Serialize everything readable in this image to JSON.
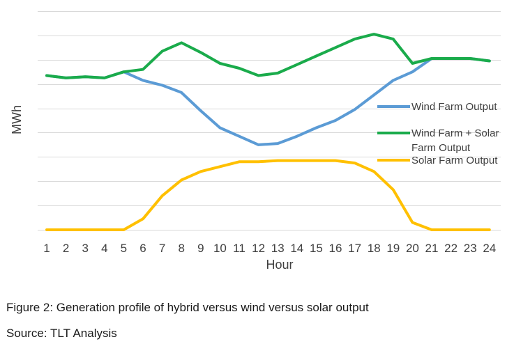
{
  "chart_data": {
    "type": "line",
    "xlabel": "Hour",
    "ylabel": "MWh",
    "x": [
      1,
      2,
      3,
      4,
      5,
      6,
      7,
      8,
      9,
      10,
      11,
      12,
      13,
      14,
      15,
      16,
      17,
      18,
      19,
      20,
      21,
      22,
      23,
      24
    ],
    "ylim": [
      0,
      9
    ],
    "grid": true,
    "legend_position": "right",
    "series": [
      {
        "name": "Wind Farm Output",
        "color": "#5b9bd5",
        "values": [
          6.35,
          6.25,
          6.3,
          6.25,
          6.5,
          6.15,
          5.95,
          5.65,
          4.9,
          4.2,
          3.85,
          3.5,
          3.55,
          3.85,
          4.2,
          4.5,
          4.95,
          5.55,
          6.15,
          6.5,
          7.05,
          7.05,
          7.05,
          6.95
        ]
      },
      {
        "name": "Wind Farm + Solar Farm Output",
        "name_line1": "Wind Farm + Solar",
        "name_line2": "Farm Output",
        "color": "#1aab4b",
        "values": [
          6.35,
          6.25,
          6.3,
          6.25,
          6.5,
          6.6,
          7.35,
          7.7,
          7.3,
          6.85,
          6.65,
          6.35,
          6.45,
          6.8,
          7.15,
          7.5,
          7.85,
          8.05,
          7.85,
          6.85,
          7.05,
          7.05,
          7.05,
          6.95
        ]
      },
      {
        "name": "Solar Farm Output",
        "color": "#ffc000",
        "values": [
          0,
          0,
          0,
          0,
          0,
          0.45,
          1.4,
          2.05,
          2.4,
          2.6,
          2.8,
          2.8,
          2.85,
          2.85,
          2.85,
          2.85,
          2.75,
          2.4,
          1.65,
          0.3,
          0,
          0,
          0,
          0
        ]
      }
    ]
  },
  "caption": "Figure 2: Generation profile of hybrid versus wind versus solar output",
  "source": "Source: TLT Analysis"
}
